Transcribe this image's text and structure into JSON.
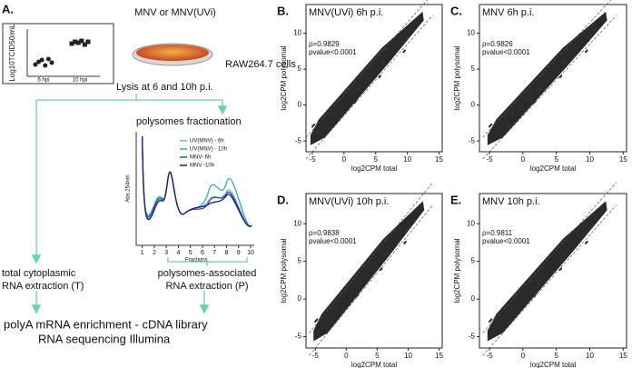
{
  "panel_a": {
    "label": "A.",
    "virus": "MNV or MNV(UVi)",
    "cells": "RAW264.7 cells",
    "lysis": "Lysis at 6 and 10h p.i.",
    "inset": {
      "ylabel": "Log10TCID50/mL",
      "categories": [
        "6 hpi",
        "10 hpi"
      ],
      "ylim": [
        4,
        9
      ],
      "values": [
        [
          5.3,
          5.6,
          5.8,
          5.2,
          5.9,
          5.5
        ],
        [
          7.6,
          7.8,
          7.7,
          7.9,
          7.5,
          7.8
        ]
      ]
    },
    "fractionation": "polysomes fractionation",
    "profile": {
      "ylabel": "Abs 254nm",
      "xlabel": "Fractions",
      "xlim": [
        0.5,
        10.3
      ],
      "xticks": [
        1,
        2,
        3,
        4,
        5,
        6,
        7,
        8,
        9,
        10
      ],
      "legend": [
        {
          "name": "UV(MNV) - 6h",
          "color": "#6fb3e8"
        },
        {
          "name": "UV(MNV) - 10h",
          "color": "#2bb39a"
        },
        {
          "name": "MNV- 6h",
          "color": "#3a4fc0"
        },
        {
          "name": "MNV -10h",
          "color": "#1b1f7a"
        }
      ]
    },
    "total_1": "total cytoplasmic",
    "total_2": "RNA extraction (T)",
    "poly_1": "polysomes-associated",
    "poly_2": "RNA extraction (P)",
    "library": "polyA mRNA enrichment - cDNA library",
    "sequencing": "RNA sequencing Illumina"
  },
  "scatter_panels": [
    {
      "label": "B.",
      "title": "MNV(UVi) 6h p.i.",
      "rho": "ρ=0.9829",
      "pvalue": "pvalue<0.0001",
      "xlabel": "log2CPM total",
      "ylabel": "log2CPM polysomal",
      "xlim": [
        -6,
        15.5
      ],
      "ylim": [
        -6.5,
        14
      ],
      "xticks": [
        -5,
        0,
        5,
        10,
        15
      ],
      "yticks": [
        -5,
        0,
        5,
        10
      ]
    },
    {
      "label": "C.",
      "title": "MNV 6h p.i.",
      "rho": "ρ=0.9826",
      "pvalue": "pvalue<0.0001",
      "xlabel": "log2CPM total",
      "ylabel": "log2CPM polysomal",
      "xlim": [
        -6.5,
        15.5
      ],
      "ylim": [
        -6.5,
        14
      ],
      "xticks": [
        -5,
        0,
        5,
        10,
        15
      ],
      "yticks": [
        -5,
        0,
        5,
        10
      ]
    },
    {
      "label": "D.",
      "title": "MNV(UVi) 10h p.i.",
      "rho": "ρ=0.9838",
      "pvalue": "pvalue<0.0001",
      "xlabel": "log2CPM total",
      "ylabel": "log2CPM polysomal",
      "xlim": [
        -6.5,
        15.5
      ],
      "ylim": [
        -6.5,
        14
      ],
      "xticks": [
        -5,
        0,
        5,
        10,
        15
      ],
      "yticks": [
        -5,
        0,
        5,
        10
      ]
    },
    {
      "label": "E.",
      "title": "MNV 10h p.i.",
      "rho": "ρ=0.9811",
      "pvalue": "pvalue<0.0001",
      "xlabel": "log2CPM total",
      "ylabel": "log2CPM polysomal",
      "xlim": [
        -6.5,
        15.5
      ],
      "ylim": [
        -6.5,
        14
      ],
      "xticks": [
        -5,
        0,
        5,
        10,
        15
      ],
      "yticks": [
        -5,
        0,
        5,
        10
      ]
    }
  ]
}
